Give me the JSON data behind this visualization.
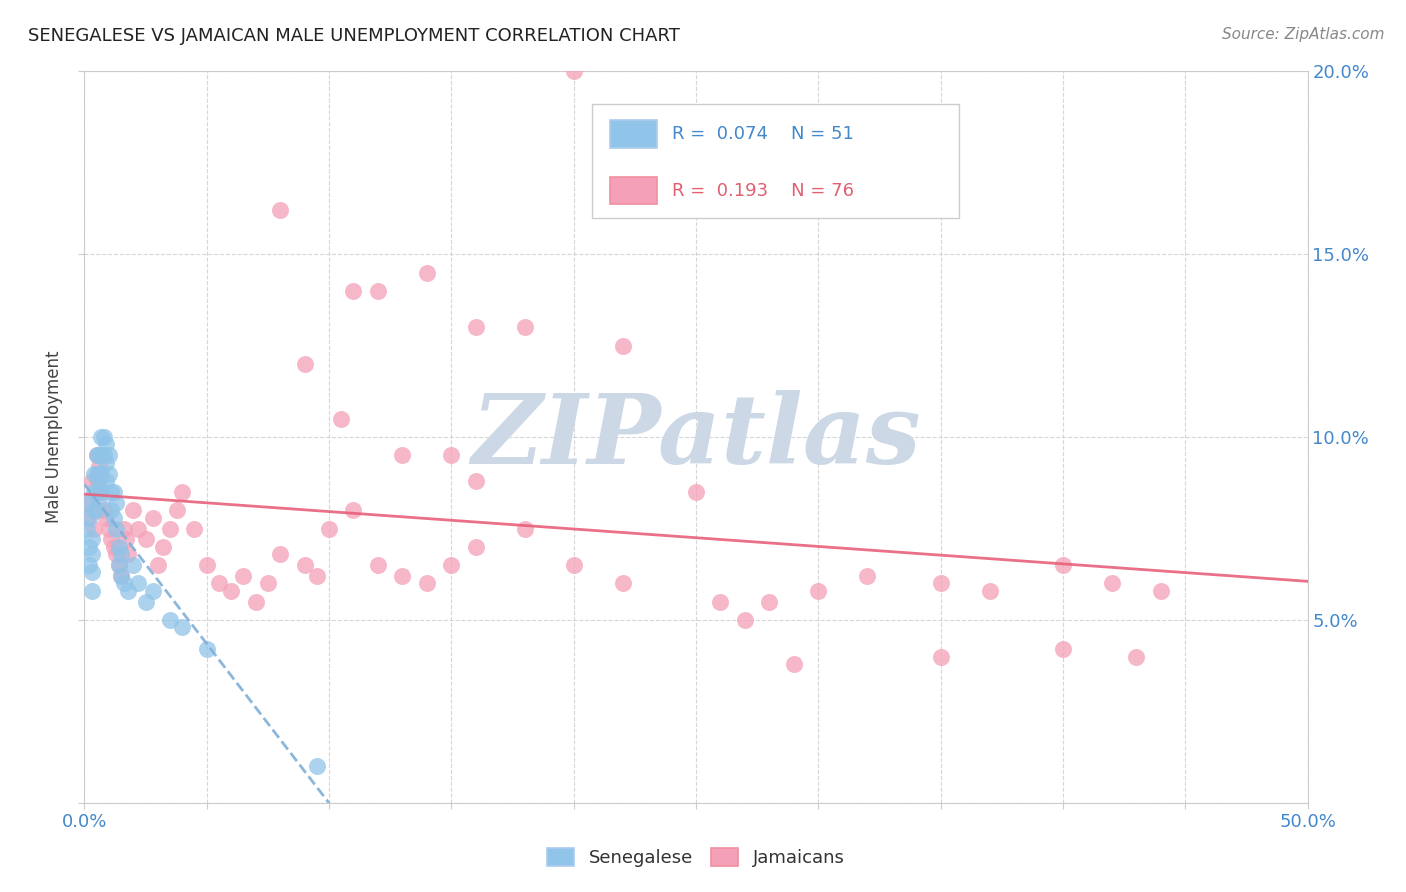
{
  "title": "SENEGALESE VS JAMAICAN MALE UNEMPLOYMENT CORRELATION CHART",
  "source": "Source: ZipAtlas.com",
  "ylabel": "Male Unemployment",
  "xlim": [
    0,
    0.5
  ],
  "ylim": [
    0,
    0.2
  ],
  "xticks": [
    0.0,
    0.05,
    0.1,
    0.15,
    0.2,
    0.25,
    0.3,
    0.35,
    0.4,
    0.45,
    0.5
  ],
  "yticks": [
    0.0,
    0.05,
    0.1,
    0.15,
    0.2
  ],
  "ytick_labels": [
    "",
    "5.0%",
    "10.0%",
    "15.0%",
    "20.0%"
  ],
  "xtick_labels": [
    "0.0%",
    "",
    "",
    "",
    "",
    "",
    "",
    "",
    "",
    "",
    "50.0%"
  ],
  "background_color": "#ffffff",
  "watermark": "ZIPatlas",
  "watermark_color": "#ccd8e5",
  "senegalese_color": "#90c4e8",
  "jamaican_color": "#f4a0b8",
  "senegalese_line_color": "#80b0d8",
  "jamaican_line_color": "#e8607a",
  "axis_tick_color": "#4488cc",
  "legend_text_sen": "R =  0.074    N = 51",
  "legend_text_jam": "R =  0.193    N = 76",
  "senegalese_x": [
    0.001,
    0.001,
    0.002,
    0.002,
    0.002,
    0.003,
    0.003,
    0.003,
    0.003,
    0.004,
    0.004,
    0.004,
    0.005,
    0.005,
    0.005,
    0.005,
    0.006,
    0.006,
    0.006,
    0.006,
    0.007,
    0.007,
    0.007,
    0.007,
    0.008,
    0.008,
    0.009,
    0.009,
    0.009,
    0.01,
    0.01,
    0.011,
    0.011,
    0.012,
    0.012,
    0.013,
    0.013,
    0.014,
    0.014,
    0.015,
    0.015,
    0.016,
    0.018,
    0.02,
    0.022,
    0.025,
    0.028,
    0.035,
    0.04,
    0.05,
    0.095
  ],
  "senegalese_y": [
    0.075,
    0.082,
    0.07,
    0.078,
    0.065,
    0.072,
    0.068,
    0.063,
    0.058,
    0.09,
    0.085,
    0.08,
    0.095,
    0.09,
    0.085,
    0.08,
    0.095,
    0.09,
    0.088,
    0.083,
    0.1,
    0.095,
    0.09,
    0.085,
    0.1,
    0.095,
    0.098,
    0.093,
    0.088,
    0.095,
    0.09,
    0.085,
    0.08,
    0.085,
    0.078,
    0.082,
    0.075,
    0.07,
    0.065,
    0.068,
    0.062,
    0.06,
    0.058,
    0.065,
    0.06,
    0.055,
    0.058,
    0.05,
    0.048,
    0.042,
    0.01
  ],
  "jamaican_x": [
    0.001,
    0.002,
    0.003,
    0.004,
    0.005,
    0.005,
    0.006,
    0.007,
    0.008,
    0.009,
    0.01,
    0.011,
    0.012,
    0.013,
    0.014,
    0.015,
    0.016,
    0.017,
    0.018,
    0.02,
    0.022,
    0.025,
    0.028,
    0.03,
    0.032,
    0.035,
    0.038,
    0.04,
    0.045,
    0.05,
    0.055,
    0.06,
    0.065,
    0.07,
    0.075,
    0.08,
    0.09,
    0.095,
    0.1,
    0.11,
    0.12,
    0.13,
    0.14,
    0.15,
    0.16,
    0.18,
    0.2,
    0.22,
    0.25,
    0.27,
    0.15,
    0.12,
    0.18,
    0.09,
    0.11,
    0.22,
    0.16,
    0.13,
    0.2,
    0.14,
    0.105,
    0.08,
    0.28,
    0.3,
    0.32,
    0.35,
    0.37,
    0.4,
    0.42,
    0.44,
    0.16,
    0.26,
    0.35,
    0.29,
    0.4,
    0.43
  ],
  "jamaican_y": [
    0.078,
    0.082,
    0.088,
    0.075,
    0.095,
    0.088,
    0.092,
    0.085,
    0.08,
    0.078,
    0.075,
    0.072,
    0.07,
    0.068,
    0.065,
    0.062,
    0.075,
    0.072,
    0.068,
    0.08,
    0.075,
    0.072,
    0.078,
    0.065,
    0.07,
    0.075,
    0.08,
    0.085,
    0.075,
    0.065,
    0.06,
    0.058,
    0.062,
    0.055,
    0.06,
    0.068,
    0.065,
    0.062,
    0.075,
    0.08,
    0.065,
    0.062,
    0.06,
    0.065,
    0.07,
    0.075,
    0.065,
    0.06,
    0.085,
    0.05,
    0.095,
    0.14,
    0.13,
    0.12,
    0.14,
    0.125,
    0.13,
    0.095,
    0.2,
    0.145,
    0.105,
    0.162,
    0.055,
    0.058,
    0.062,
    0.06,
    0.058,
    0.065,
    0.06,
    0.058,
    0.088,
    0.055,
    0.04,
    0.038,
    0.042,
    0.04
  ]
}
